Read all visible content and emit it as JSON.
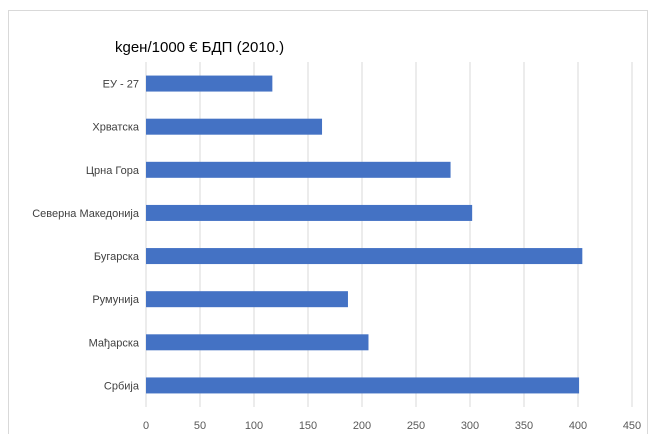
{
  "chart_data": {
    "type": "bar",
    "orientation": "horizontal",
    "title": "kgeн/1000 € БДП (2010.)",
    "categories": [
      "ЕУ - 27",
      "Хрватска",
      "Црна Гора",
      "Северна Македонија",
      "Бугарска",
      "Румунија",
      "Мађарска",
      "Србија"
    ],
    "values": [
      117,
      163,
      282,
      302,
      404,
      187,
      206,
      401
    ],
    "xlim": [
      0,
      450
    ],
    "xticks": [
      0,
      50,
      100,
      150,
      200,
      250,
      300,
      350,
      400,
      450
    ],
    "grid": true,
    "legend": "none",
    "bar_color": "#4472c4"
  }
}
